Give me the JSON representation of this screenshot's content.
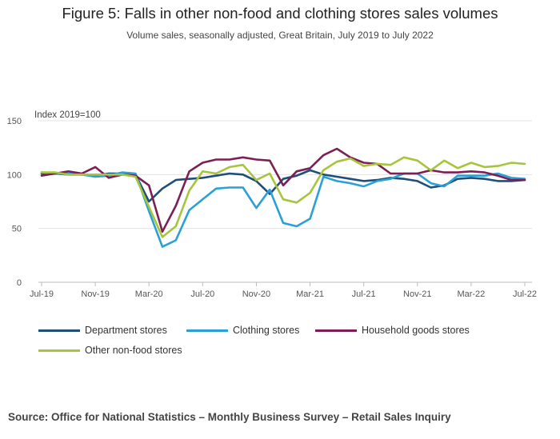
{
  "title": "Figure 5: Falls in other non-food and clothing stores sales volumes",
  "subtitle": "Volume sales, seasonally adjusted, Great Britain, July 2019 to July 2022",
  "source": "Source: Office for National Statistics – Monthly Business Survey – Retail Sales Inquiry",
  "chart_data": {
    "type": "line",
    "ylabel": "Index 2019=100",
    "ylim": [
      0,
      150
    ],
    "yticks": [
      0,
      50,
      100,
      150
    ],
    "grid": true,
    "legend_position": "bottom",
    "x": [
      "Jul-19",
      "Aug-19",
      "Sep-19",
      "Oct-19",
      "Nov-19",
      "Dec-19",
      "Jan-20",
      "Feb-20",
      "Mar-20",
      "Apr-20",
      "May-20",
      "Jun-20",
      "Jul-20",
      "Aug-20",
      "Sep-20",
      "Oct-20",
      "Nov-20",
      "Dec-20",
      "Jan-21",
      "Feb-21",
      "Mar-21",
      "Apr-21",
      "May-21",
      "Jun-21",
      "Jul-21",
      "Aug-21",
      "Sep-21",
      "Oct-21",
      "Nov-21",
      "Dec-21",
      "Jan-22",
      "Feb-22",
      "Mar-22",
      "Apr-22",
      "May-22",
      "Jun-22",
      "Jul-22"
    ],
    "xtick_labels": [
      "Jul-19",
      "Nov-19",
      "Mar-20",
      "Jul-20",
      "Nov-20",
      "Mar-21",
      "Jul-21",
      "Nov-21",
      "Mar-22",
      "Jul-22"
    ],
    "series": [
      {
        "name": "Department stores",
        "color": "#1f4e79",
        "values": [
          101,
          101,
          100,
          100,
          99,
          101,
          101,
          100,
          75,
          87,
          95,
          96,
          97,
          99,
          101,
          100,
          94,
          82,
          96,
          99,
          104,
          100,
          98,
          96,
          94,
          95,
          97,
          96,
          94,
          88,
          90,
          96,
          97,
          96,
          94,
          94,
          95
        ]
      },
      {
        "name": "Clothing stores",
        "color": "#2aa0d6",
        "values": [
          102,
          101,
          101,
          100,
          98,
          99,
          102,
          101,
          66,
          33,
          39,
          67,
          77,
          87,
          88,
          88,
          69,
          86,
          55,
          52,
          59,
          98,
          94,
          92,
          89,
          94,
          96,
          101,
          101,
          92,
          89,
          99,
          99,
          99,
          101,
          97,
          96
        ]
      },
      {
        "name": "Household goods stores",
        "color": "#7b1f54",
        "values": [
          99,
          101,
          103,
          101,
          107,
          97,
          100,
          99,
          90,
          47,
          71,
          103,
          111,
          114,
          114,
          116,
          114,
          113,
          90,
          103,
          106,
          118,
          124,
          116,
          111,
          110,
          101,
          101,
          101,
          104,
          102,
          102,
          103,
          102,
          99,
          95,
          95
        ]
      },
      {
        "name": "Other non-food stores",
        "color": "#a7c53c",
        "values": [
          102,
          102,
          100,
          100,
          100,
          100,
          100,
          98,
          70,
          42,
          52,
          85,
          103,
          101,
          107,
          109,
          95,
          101,
          77,
          74,
          83,
          104,
          112,
          115,
          108,
          110,
          109,
          116,
          113,
          104,
          113,
          106,
          111,
          107,
          108,
          111,
          110
        ]
      }
    ]
  }
}
